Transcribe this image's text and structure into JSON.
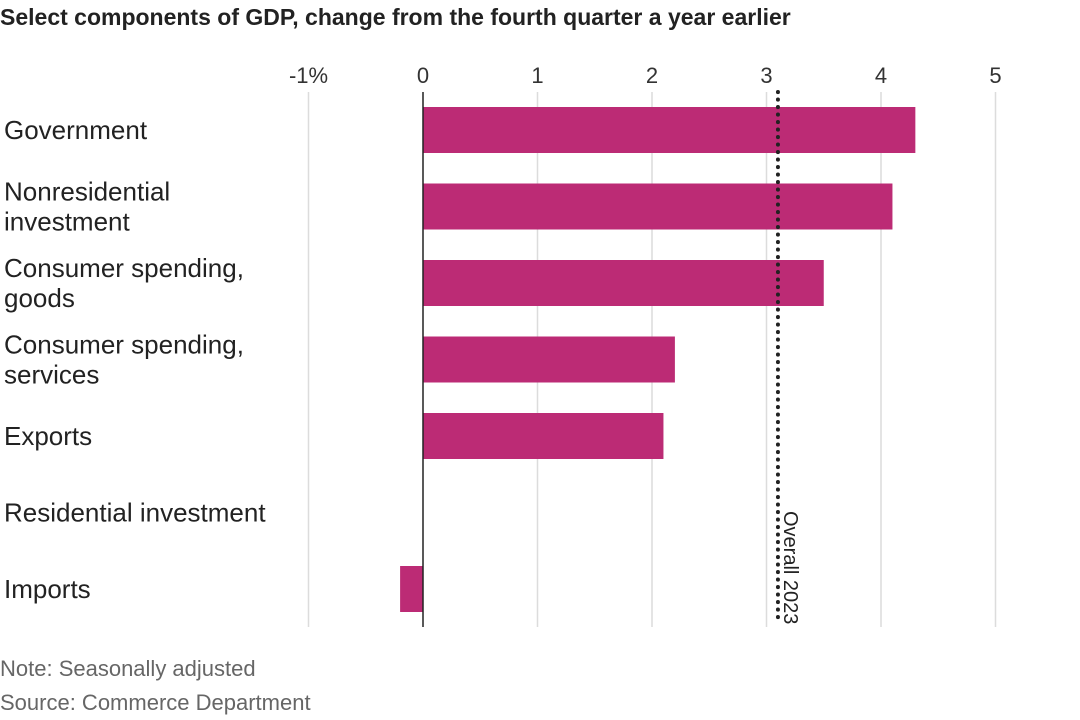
{
  "chart_data": {
    "type": "bar",
    "orientation": "horizontal",
    "title": "Select components of GDP, change from the fourth quarter a year earlier",
    "categories": [
      [
        "Government"
      ],
      [
        "Nonresidential",
        "investment"
      ],
      [
        "Consumer spending,",
        "goods"
      ],
      [
        "Consumer spending,",
        "services"
      ],
      [
        "Exports"
      ],
      [
        "Residential investment"
      ],
      [
        "Imports"
      ]
    ],
    "values": [
      4.3,
      4.1,
      3.5,
      2.2,
      2.1,
      0.0,
      -0.2
    ],
    "xlim": [
      -1,
      5
    ],
    "xticks": [
      -1,
      0,
      1,
      2,
      3,
      4,
      5
    ],
    "xtick_labels": [
      "-1%",
      "0",
      "1",
      "2",
      "3",
      "4",
      "5"
    ],
    "grid": true,
    "bar_color": "#bc2b75",
    "reference_line": {
      "value": 3.1,
      "label": "Overall 2023",
      "style": "dotted"
    }
  },
  "note": "Note: Seasonally adjusted",
  "source": "Source: Commerce Department"
}
